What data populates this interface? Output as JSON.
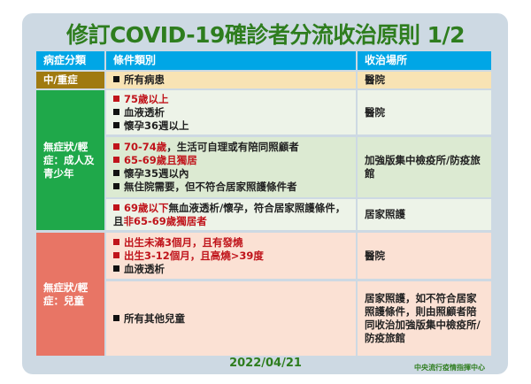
{
  "title": "修訂COVID-19確診者分流收治原則 1/2",
  "headers": [
    "病症分類",
    "條件類別",
    "收治場所"
  ],
  "categories": {
    "severe": "中/重症",
    "adult": "無症狀/輕症：成人及青少年",
    "child": "無症狀/輕症：兒童"
  },
  "rows": [
    {
      "items": [
        [
          {
            "t": "所有病患",
            "red": false
          }
        ]
      ],
      "place": "醫院"
    },
    {
      "items": [
        [
          {
            "t": "75歲以上",
            "red": true
          }
        ],
        [
          {
            "t": "血液透析",
            "red": false
          }
        ],
        [
          {
            "t": "懷孕36週以上",
            "red": false
          }
        ]
      ],
      "place": "醫院"
    },
    {
      "items": [
        [
          {
            "t": "70-74歲",
            "red": true
          },
          {
            "t": "，生活可自理或有陪同照顧者",
            "red": false
          }
        ],
        [
          {
            "t": "65-69歲且獨居",
            "red": true
          }
        ],
        [
          {
            "t": "懷孕35週以內",
            "red": false
          }
        ],
        [
          {
            "t": "無住院需要，但不符合居家照護條件者",
            "red": false
          }
        ]
      ],
      "place": "加強版集中檢疫所/防疫旅館"
    },
    {
      "items": [
        [
          {
            "t": "69歲以下",
            "red": true
          },
          {
            "t": "無血液透析/懷孕，符合居家照護條件，且",
            "red": false
          },
          {
            "t": "非65-69歲獨居者",
            "red": true
          }
        ]
      ],
      "place": "居家照護"
    },
    {
      "items": [
        [
          {
            "t": "出生未滿3個月，且有發燒",
            "red": true
          }
        ],
        [
          {
            "t": "出生3-12個月，且高燒>39度",
            "red": true
          }
        ],
        [
          {
            "t": "血液透析",
            "red": false
          }
        ]
      ],
      "place": "醫院"
    },
    {
      "items": [
        [
          {
            "t": "所有其他兒童",
            "red": false
          }
        ]
      ],
      "place": "居家照護，如不符合居家照護條件，則由照顧者陪同收治加強版集中檢疫所/防疫旅館"
    }
  ],
  "date": "2022/04/21",
  "org": "中央流行疫情指揮中心",
  "colors": {
    "header": "#00a6e6",
    "severe": "#a07a10",
    "adult": "#1fa84a",
    "child": "#e87565",
    "title": "#2e7d1e"
  }
}
